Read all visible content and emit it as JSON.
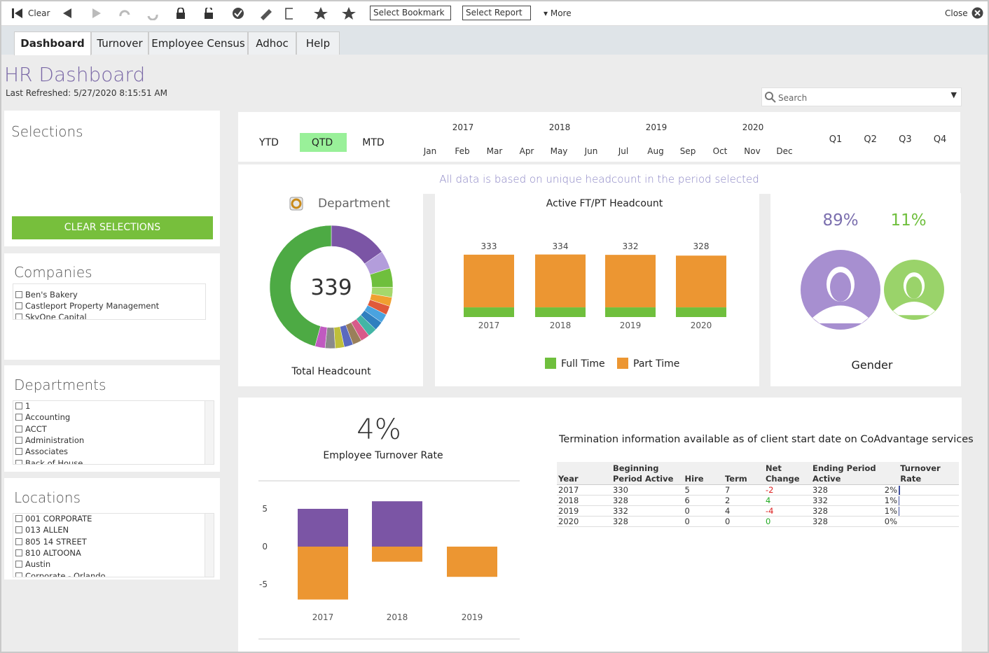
{
  "toolbar": {
    "clear": "Clear",
    "bookmark": "Select Bookmark",
    "report": "Select Report",
    "more": "More",
    "close": "Close"
  },
  "tabs": [
    "Dashboard",
    "Turnover",
    "Employee Census",
    "Adhoc",
    "Help"
  ],
  "header": {
    "title": "HR Dashboard",
    "refreshed": "Last Refreshed: 5/27/2020 8:15:51 AM"
  },
  "search": "Search",
  "sidebar": {
    "selections": {
      "title": "Selections",
      "button": "CLEAR SELECTIONS"
    },
    "companies": {
      "title": "Companies",
      "items": [
        "Ben's Bakery",
        "Castleport Property Management",
        "SkyOne Capital"
      ]
    },
    "departments": {
      "title": "Departments",
      "items": [
        "1",
        "Accounting",
        "ACCT",
        "Administration",
        "Associates",
        "Back of House"
      ]
    },
    "locations": {
      "title": "Locations",
      "items": [
        "001 CORPORATE",
        "013 ALLEN",
        "805 14 STREET",
        "810 ALTOONA",
        "Austin",
        "Corporate - Orlando"
      ]
    }
  },
  "period": {
    "modes": [
      "YTD",
      "QTD",
      "MTD"
    ],
    "years": [
      "2017",
      "2018",
      "2019",
      "2020"
    ],
    "months": [
      "Jan",
      "Feb",
      "Mar",
      "Apr",
      "May",
      "Jun",
      "Jul",
      "Aug",
      "Sep",
      "Oct",
      "Nov",
      "Dec"
    ],
    "quarters": [
      "Q1",
      "Q2",
      "Q3",
      "Q4"
    ]
  },
  "note": "All data is based on unique headcount in the period selected",
  "chart_data": [
    {
      "type": "donut",
      "title": "Department",
      "total": 339,
      "caption": "Total Headcount",
      "values": [
        52,
        16,
        17,
        9,
        8,
        8,
        8,
        8,
        8,
        8,
        8,
        8,
        8,
        9,
        9,
        155
      ],
      "colors": [
        "#7b55a5",
        "#b39ddb",
        "#6fbf3d",
        "#a5d86b",
        "#f0a030",
        "#e05a3a",
        "#4aa3df",
        "#2f7fbf",
        "#43b5a5",
        "#d85a8a",
        "#9a7f5a",
        "#5a6abf",
        "#bfbf3a",
        "#8a8a8a",
        "#c05ac0",
        "#4daa44"
      ]
    },
    {
      "type": "stacked_bar",
      "title": "Active FT/PT Headcount",
      "categories": [
        "2017",
        "2018",
        "2019",
        "2020"
      ],
      "series": [
        {
          "name": "Full Time",
          "color": "#6fbf3d",
          "values": [
            52,
            52,
            52,
            52
          ]
        },
        {
          "name": "Part Time",
          "color": "#ec9632",
          "values": [
            281,
            282,
            280,
            276
          ]
        }
      ],
      "totals": [
        333,
        334,
        332,
        328
      ],
      "ylim": [
        0,
        340
      ]
    },
    {
      "type": "gender",
      "caption": "Gender",
      "values": [
        89,
        11
      ],
      "value_labels": [
        "89%",
        "11%"
      ],
      "colors": [
        "#a78fd0",
        "#9ad36a"
      ],
      "label_colors": [
        "#7b6fae",
        "#6fbf3d"
      ]
    },
    {
      "type": "bar",
      "headline": 4,
      "headline_label": "4%",
      "caption": "Employee Turnover Rate",
      "categories": [
        "2017",
        "2018",
        "2019"
      ],
      "series": [
        {
          "color": "#7b55a5",
          "values": [
            5,
            6,
            0
          ]
        },
        {
          "color": "#ec9632",
          "values": [
            -7,
            -2,
            -4
          ]
        }
      ],
      "ylim": [
        -8.5,
        7
      ],
      "yticks": [
        -5,
        0,
        5
      ]
    }
  ],
  "termination": {
    "note": "Termination information available as of client start date on CoAdvantage services",
    "headers": [
      "Year",
      "Beginning Period Active",
      "Hire",
      "Term",
      "Net Change",
      "Ending Period Active",
      "Turnover Rate"
    ],
    "rows": [
      [
        "2017",
        "330",
        "5",
        "7",
        "-2",
        "328",
        "2%"
      ],
      [
        "2018",
        "328",
        "6",
        "2",
        "4",
        "332",
        "1%"
      ],
      [
        "2019",
        "332",
        "0",
        "4",
        "-4",
        "328",
        "1%"
      ],
      [
        "2020",
        "328",
        "0",
        "0",
        "0",
        "328",
        "0%"
      ]
    ]
  }
}
